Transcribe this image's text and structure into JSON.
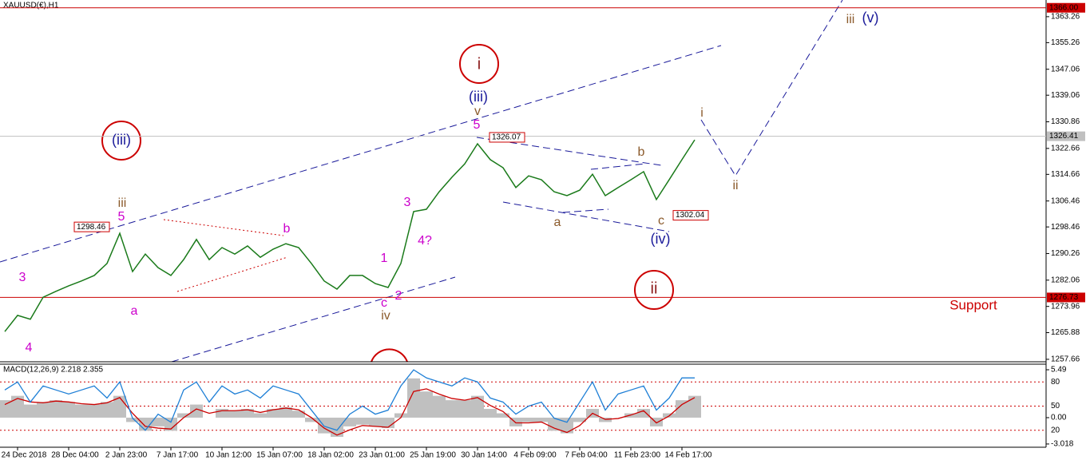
{
  "chart_data": [
    {
      "type": "line",
      "title": "XAUUSD(€),H1",
      "color": "#1a7a1a",
      "categories": [
        null,
        "24 Dec 2018",
        null,
        null,
        null,
        "28 Dec 04:00",
        null,
        null,
        null,
        "2 Jan 23:00",
        null,
        null,
        null,
        "7 Jan 17:00",
        null,
        null,
        null,
        "10 Jan 12:00",
        null,
        null,
        null,
        "15 Jan 07:00",
        null,
        null,
        null,
        "18 Jan 02:00",
        null,
        null,
        null,
        "23 Jan 01:00",
        null,
        null,
        null,
        "25 Jan 19:00",
        null,
        null,
        null,
        "30 Jan 14:00",
        null,
        null,
        null,
        "4 Feb 09:00",
        null,
        null,
        null,
        "7 Feb 04:00",
        null,
        null,
        null,
        "11 Feb 23:00",
        null,
        null,
        null,
        "14 Feb 17:00",
        null
      ],
      "values": [
        1266.2,
        1271.2,
        1270.0,
        1276.8,
        1278.6,
        1280.3,
        1281.8,
        1283.5,
        1287.2,
        1296.5,
        1284.7,
        1290.1,
        1285.9,
        1283.5,
        1288.4,
        1294.6,
        1288.4,
        1292.1,
        1290.1,
        1292.6,
        1289.1,
        1291.6,
        1293.3,
        1292.1,
        1287.2,
        1281.8,
        1279.3,
        1283.5,
        1283.5,
        1281.0,
        1279.8,
        1287.2,
        1303.2,
        1303.9,
        1309.3,
        1313.8,
        1317.9,
        1324.1,
        1319.2,
        1316.7,
        1310.6,
        1314.2,
        1313.0,
        1309.3,
        1308.1,
        1309.8,
        1314.7,
        1308.1,
        1310.6,
        1313.0,
        1315.5,
        1306.9,
        1313.0,
        1319.2,
        1325.3
      ],
      "ylim": [
        1256.9,
        1368.4
      ],
      "yticks": [
        1257.66,
        1265.88,
        1273.96,
        1282.06,
        1290.26,
        1298.46,
        1306.46,
        1314.66,
        1322.66,
        1330.86,
        1339.06,
        1347.06,
        1355.26,
        1363.26
      ],
      "levels": [
        {
          "value": 1366,
          "label": "1366.00",
          "color": "#cc0000"
        },
        {
          "value": 1326.41,
          "label": "1326.41",
          "color": "#c0c0c0"
        },
        {
          "value": 1276.73,
          "label": "1276.73",
          "color": "#cc0000"
        }
      ],
      "price_notes": [
        1298.46,
        1326.07,
        1302.04
      ],
      "annotations": [
        {
          "text": "3",
          "color": "#cc00cc"
        },
        {
          "text": "4",
          "color": "#cc00cc"
        },
        {
          "text": "5",
          "color": "#cc00cc"
        },
        {
          "text": "a",
          "color": "#cc00cc"
        },
        {
          "text": "b",
          "color": "#cc00cc"
        },
        {
          "text": "1",
          "color": "#cc00cc"
        },
        {
          "text": "2",
          "color": "#cc00cc"
        },
        {
          "text": "c",
          "color": "#cc00cc"
        },
        {
          "text": "3",
          "color": "#cc00cc"
        },
        {
          "text": "4?",
          "color": "#cc00cc"
        },
        {
          "text": "5",
          "color": "#cc00cc"
        },
        {
          "text": "iii",
          "color": "#8b5a2b"
        },
        {
          "text": "iv",
          "color": "#8b5a2b"
        },
        {
          "text": "v",
          "color": "#8b5a2b"
        },
        {
          "text": "a",
          "color": "#8b5a2b"
        },
        {
          "text": "b",
          "color": "#8b5a2b"
        },
        {
          "text": "c",
          "color": "#8b5a2b"
        },
        {
          "text": "i",
          "color": "#8b5a2b"
        },
        {
          "text": "ii",
          "color": "#8b5a2b"
        },
        {
          "text": "iii",
          "color": "#8b5a2b"
        },
        {
          "text": "(iii)",
          "color": "#1a1a9a"
        },
        {
          "text": "(iii)",
          "color": "#1a1a9a"
        },
        {
          "text": "(iv)",
          "color": "#1a1a9a"
        },
        {
          "text": "(v)",
          "color": "#1a1a9a"
        },
        {
          "text": "i",
          "color": "#8b1a1a"
        },
        {
          "text": "ii",
          "color": "#8b1a1a"
        },
        {
          "text": "Support",
          "color": "#cc0000"
        }
      ]
    },
    {
      "type": "macd",
      "title": "MACD(12,26,9) 2.218 2.355",
      "series": [
        {
          "type": "bar",
          "color": "#c0c0c0",
          "values": [
            2.0,
            2.5,
            1.5,
            1.8,
            2.0,
            1.8,
            1.5,
            1.5,
            1.8,
            2.5,
            -0.5,
            -1.5,
            -1.0,
            -1.5,
            0.5,
            1.5,
            0,
            1.0,
            0.8,
            1.0,
            0.5,
            1.0,
            1.2,
            0.8,
            -0.5,
            -1.8,
            -2.2,
            -1.0,
            -0.8,
            -1.0,
            -1.2,
            0.5,
            4.5,
            3.0,
            2.5,
            2.0,
            2.0,
            2.5,
            1.0,
            0.5,
            -1.0,
            -0.5,
            -0.5,
            -1.5,
            -1.8,
            -0.5,
            1.0,
            -0.5,
            0,
            0.5,
            1.0,
            -1.0,
            0.5,
            2.0,
            2.5
          ]
        },
        {
          "type": "line",
          "color": "#cc0000",
          "values": [
            1.5,
            2.2,
            1.8,
            1.7,
            1.9,
            1.8,
            1.6,
            1.5,
            1.7,
            2.3,
            0.5,
            -1.0,
            -1.2,
            -1.3,
            0,
            1.0,
            0.5,
            0.8,
            0.8,
            0.9,
            0.6,
            0.9,
            1.1,
            0.9,
            0,
            -1.2,
            -2.0,
            -1.4,
            -0.9,
            -1.0,
            -1.1,
            0,
            3.0,
            3.3,
            2.7,
            2.2,
            2.0,
            2.3,
            1.4,
            0.7,
            -0.6,
            -0.6,
            -0.5,
            -1.2,
            -1.7,
            -0.9,
            0.5,
            -0.2,
            -0.1,
            0.3,
            0.8,
            -0.6,
            0.2,
            1.5,
            2.3
          ]
        },
        {
          "type": "line",
          "axis": "y2",
          "color": "#1e7fd6",
          "values": [
            70,
            80,
            55,
            75,
            70,
            65,
            70,
            75,
            60,
            80,
            35,
            20,
            40,
            30,
            70,
            80,
            55,
            75,
            65,
            70,
            60,
            75,
            70,
            65,
            45,
            25,
            20,
            40,
            50,
            40,
            45,
            75,
            95,
            85,
            80,
            75,
            85,
            80,
            60,
            55,
            40,
            50,
            55,
            35,
            30,
            55,
            80,
            45,
            65,
            70,
            75,
            45,
            60,
            85,
            85
          ]
        }
      ],
      "ylim": [
        -3.39,
        6.13
      ],
      "yticks": [
        5.49,
        {
          "value": 0,
          "label": "0.00"
        },
        -3.018
      ],
      "y2lim": [
        -1,
        102
      ],
      "y2ticks": [
        20,
        50,
        80
      ]
    }
  ]
}
